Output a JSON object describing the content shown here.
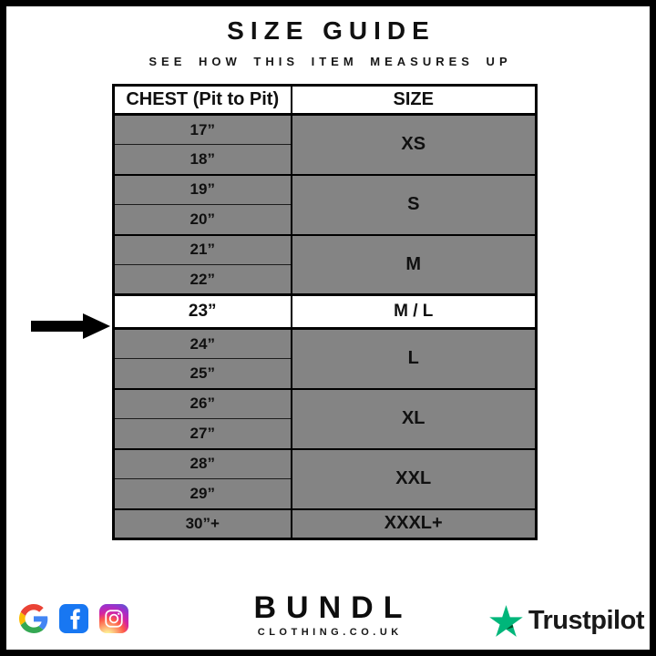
{
  "page": {
    "title": "SIZE GUIDE",
    "subtitle": "SEE HOW THIS ITEM MEASURES UP"
  },
  "table": {
    "headers": {
      "chest": "CHEST (Pit to Pit)",
      "size": "SIZE"
    },
    "groups": [
      {
        "chest": [
          "17”",
          "18”"
        ],
        "size": "XS",
        "highlight": false
      },
      {
        "chest": [
          "19”",
          "20”"
        ],
        "size": "S",
        "highlight": false
      },
      {
        "chest": [
          "21”",
          "22”"
        ],
        "size": "M",
        "highlight": false
      },
      {
        "chest": [
          "23”"
        ],
        "size": "M / L",
        "highlight": true
      },
      {
        "chest": [
          "24”",
          "25”"
        ],
        "size": "L",
        "highlight": false
      },
      {
        "chest": [
          "26”",
          "27”"
        ],
        "size": "XL",
        "highlight": false
      },
      {
        "chest": [
          "28”",
          "29”"
        ],
        "size": "XXL",
        "highlight": false
      },
      {
        "chest": [
          "30”+"
        ],
        "size": "XXXL+",
        "highlight": false
      }
    ],
    "highlighted_chest": "23”",
    "highlighted_size": "M / L"
  },
  "footer": {
    "social_icons": [
      "google-icon",
      "facebook-icon",
      "instagram-icon"
    ],
    "brand": {
      "name": "BUNDL",
      "domain": "CLOTHING.CO.UK"
    },
    "trustpilot": {
      "label": "Trustpilot"
    }
  },
  "colors": {
    "row_gray": "#848484",
    "highlight_white": "#ffffff",
    "border_black": "#000000",
    "trustpilot_green": "#00B67A",
    "trustpilot_dark_green": "#005128",
    "facebook_blue": "#1877F2",
    "google_blue": "#4285F4",
    "google_red": "#EA4335",
    "google_yellow": "#FBBC05",
    "google_green": "#34A853"
  }
}
